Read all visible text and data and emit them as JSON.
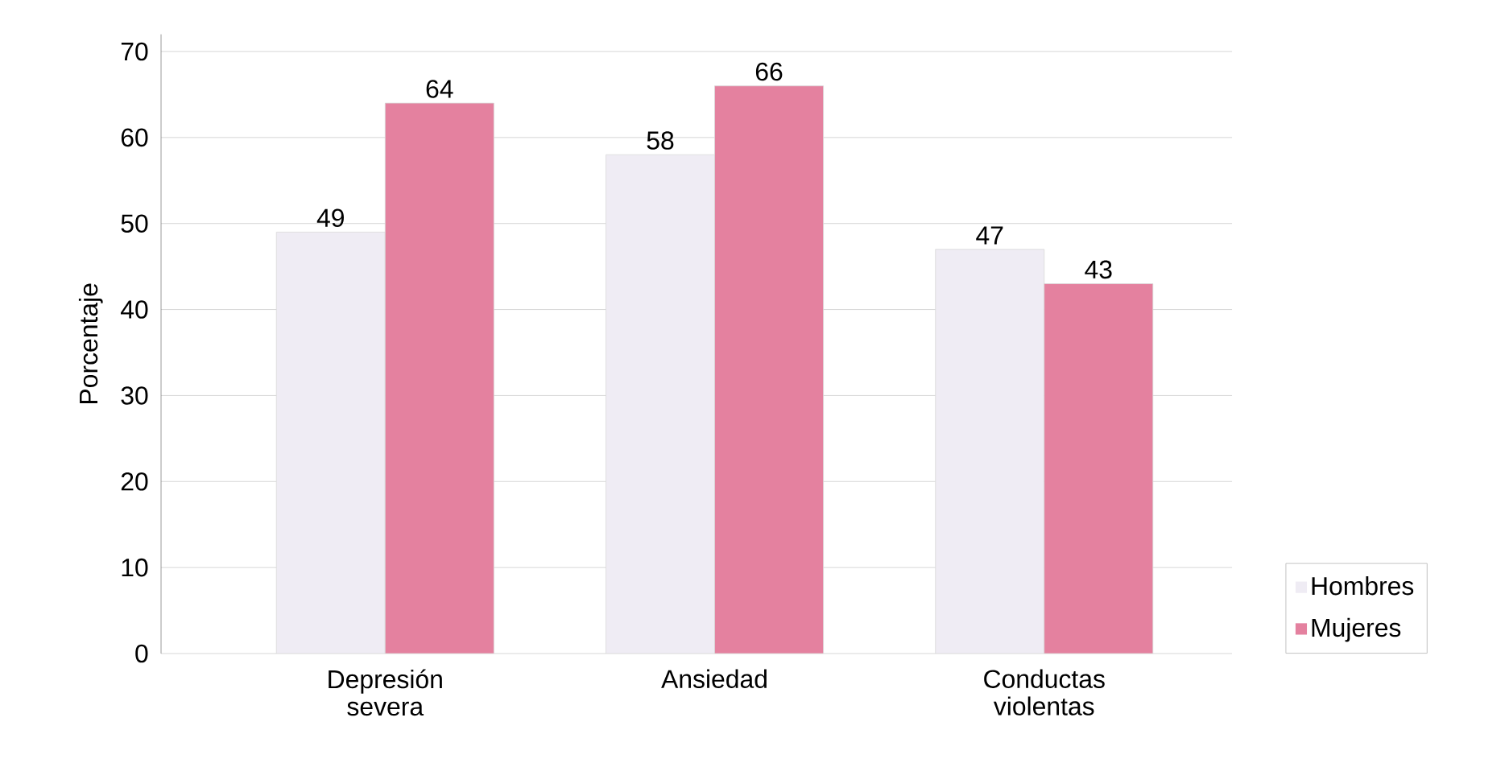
{
  "chart_data": {
    "type": "bar",
    "ylabel": "Porcentaje",
    "categories": [
      "Depresión severa",
      "Ansiedad",
      "Conductas violentas"
    ],
    "series": [
      {
        "name": "Hombres",
        "color": "#efecf4",
        "values": [
          49,
          58,
          47
        ]
      },
      {
        "name": "Mujeres",
        "color": "#e4819f",
        "values": [
          64,
          66,
          43
        ]
      }
    ],
    "ylim": [
      0,
      72
    ],
    "yticks": [
      0,
      10,
      20,
      30,
      40,
      50,
      60,
      70
    ],
    "grid": "y",
    "legend": "right",
    "data_labels": true
  }
}
